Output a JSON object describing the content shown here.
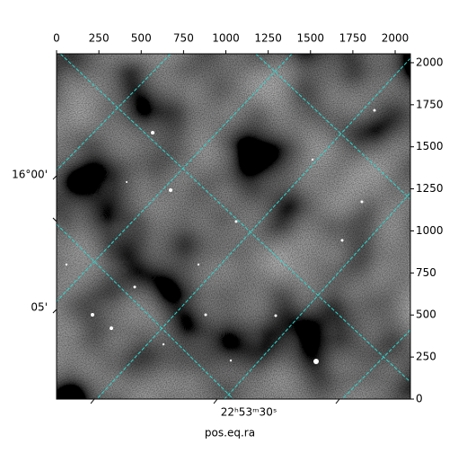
{
  "chart_data": {
    "type": "image",
    "xlabel": "pos.eq.ra",
    "xlim": [
      0,
      2090
    ],
    "ylim": [
      0,
      2053
    ],
    "xticks": [
      0,
      250,
      500,
      750,
      1000,
      1250,
      1500,
      1750,
      2000
    ],
    "yticks": [
      0,
      250,
      500,
      750,
      1000,
      1250,
      1500,
      1750,
      2000
    ],
    "world_xticks": [
      "22ʰ53ᵐ30ˢ"
    ],
    "world_yticks": [
      "16°00'",
      "05'"
    ]
  }
}
